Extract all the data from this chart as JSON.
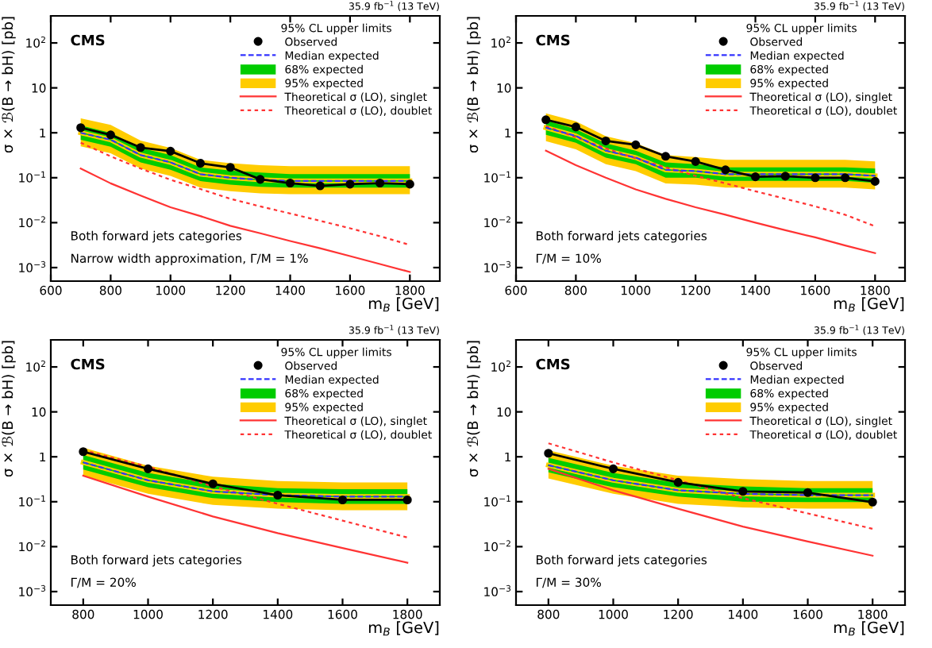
{
  "chart_data": [
    {
      "type": "line",
      "xlabel": "m$_{B}$ [GeV]",
      "ylabel": "σ × ℬ(B → bH) [pb]",
      "legend_title": "95% CL upper limits",
      "legend": "top right",
      "log": "y",
      "annotations": [
        "35.9 fb$^{−1}$ (13 TeV)",
        "CMS",
        "Both forward jets categories",
        "Narrow width approximation, Γ/M = 1%"
      ],
      "xlim": [
        600,
        1900
      ],
      "xticks": [
        600,
        800,
        1000,
        1200,
        1400,
        1600,
        1800
      ],
      "ylim": [
        0.0005,
        400
      ],
      "yticks": [
        {
          "value": 0.001,
          "label": "10$^{−3}$"
        },
        {
          "value": 0.01,
          "label": "10$^{−2}$"
        },
        {
          "value": 0.1,
          "label": "10$^{−1}$"
        },
        1,
        10,
        {
          "value": 100,
          "label": "10$^{2}$"
        }
      ],
      "x": [
        700,
        800,
        900,
        1000,
        1100,
        1200,
        1300,
        1400,
        1500,
        1600,
        1700,
        1800
      ],
      "series": [
        {
          "name": "Observed",
          "color": "#000000",
          "marker": "circle",
          "line_style": "solid",
          "values": [
            1.3,
            0.9,
            0.47,
            0.39,
            0.21,
            0.17,
            0.092,
            0.076,
            0.066,
            0.072,
            0.076,
            0.072
          ]
        },
        {
          "name": "Median expected",
          "color": "#3333ff",
          "line_style": "dashed",
          "values": [
            1.0,
            0.7,
            0.32,
            0.22,
            0.12,
            0.1,
            0.09,
            0.085,
            0.085,
            0.085,
            0.085,
            0.085
          ]
        },
        {
          "name": "68% expected",
          "color": "#00cc00",
          "values": [
            1.0,
            0.7,
            0.32,
            0.22,
            0.12,
            0.1,
            0.09,
            0.085,
            0.085,
            0.085,
            0.085,
            0.085
          ],
          "lower": [
            0.7,
            0.49,
            0.22,
            0.15,
            0.084,
            0.07,
            0.063,
            0.06,
            0.06,
            0.06,
            0.06,
            0.06
          ],
          "upper": [
            1.45,
            1.0,
            0.46,
            0.32,
            0.17,
            0.145,
            0.13,
            0.12,
            0.12,
            0.12,
            0.12,
            0.12
          ]
        },
        {
          "name": "95% expected",
          "color": "#ffcc00",
          "values": [
            1.0,
            0.7,
            0.32,
            0.22,
            0.12,
            0.1,
            0.09,
            0.085,
            0.085,
            0.085,
            0.085,
            0.085
          ],
          "lower": [
            0.5,
            0.35,
            0.16,
            0.11,
            0.06,
            0.05,
            0.045,
            0.043,
            0.043,
            0.043,
            0.043,
            0.043
          ],
          "upper": [
            2.1,
            1.5,
            0.67,
            0.46,
            0.25,
            0.21,
            0.19,
            0.18,
            0.18,
            0.18,
            0.18,
            0.18
          ]
        },
        {
          "name": "Theoretical σ (LO), singlet",
          "color": "#ff3333",
          "line_style": "solid",
          "values": [
            0.16,
            0.075,
            0.04,
            0.022,
            0.014,
            0.0085,
            0.0058,
            0.0039,
            0.0027,
            0.0018,
            0.0012,
            0.0008
          ]
        },
        {
          "name": "Theoretical σ (LO), doublet",
          "color": "#ff3333",
          "line_style": "dotted",
          "values": [
            0.6,
            0.3,
            0.16,
            0.09,
            0.056,
            0.034,
            0.023,
            0.016,
            0.011,
            0.0075,
            0.005,
            0.0032
          ]
        }
      ]
    },
    {
      "type": "line",
      "xlabel": "m$_{B}$ [GeV]",
      "ylabel": "σ × ℬ(B → bH) [pb]",
      "legend_title": "95% CL upper limits",
      "legend": "top right",
      "log": "y",
      "annotations": [
        "35.9 fb$^{−1}$ (13 TeV)",
        "CMS",
        "Both forward jets categories",
        "Γ/M = 10%"
      ],
      "xlim": [
        600,
        1900
      ],
      "xticks": [
        600,
        800,
        1000,
        1200,
        1400,
        1600,
        1800
      ],
      "ylim": [
        0.0005,
        400
      ],
      "yticks": [
        {
          "value": 0.001,
          "label": "10$^{−3}$"
        },
        {
          "value": 0.01,
          "label": "10$^{−2}$"
        },
        {
          "value": 0.1,
          "label": "10$^{−1}$"
        },
        1,
        10,
        {
          "value": 100,
          "label": "10$^{2}$"
        }
      ],
      "x": [
        700,
        800,
        900,
        1000,
        1100,
        1200,
        1300,
        1400,
        1500,
        1600,
        1700,
        1800
      ],
      "series": [
        {
          "name": "Observed",
          "color": "#000000",
          "marker": "circle",
          "line_style": "solid",
          "values": [
            1.95,
            1.35,
            0.66,
            0.54,
            0.3,
            0.23,
            0.15,
            0.105,
            0.108,
            0.1,
            0.1,
            0.083
          ]
        },
        {
          "name": "Median expected",
          "color": "#3333ff",
          "line_style": "dashed",
          "values": [
            1.3,
            0.85,
            0.4,
            0.28,
            0.15,
            0.14,
            0.12,
            0.12,
            0.12,
            0.12,
            0.12,
            0.11
          ]
        },
        {
          "name": "68% expected",
          "color": "#00cc00",
          "values": [
            1.3,
            0.85,
            0.4,
            0.28,
            0.15,
            0.14,
            0.12,
            0.12,
            0.12,
            0.12,
            0.12,
            0.11
          ],
          "lower": [
            0.9,
            0.6,
            0.28,
            0.2,
            0.1,
            0.1,
            0.085,
            0.085,
            0.085,
            0.085,
            0.085,
            0.077
          ],
          "upper": [
            1.9,
            1.2,
            0.58,
            0.4,
            0.22,
            0.2,
            0.17,
            0.17,
            0.17,
            0.17,
            0.17,
            0.16
          ]
        },
        {
          "name": "95% expected",
          "color": "#ffcc00",
          "values": [
            1.3,
            0.85,
            0.4,
            0.28,
            0.15,
            0.14,
            0.12,
            0.12,
            0.12,
            0.12,
            0.12,
            0.11
          ],
          "lower": [
            0.65,
            0.43,
            0.2,
            0.14,
            0.075,
            0.07,
            0.06,
            0.06,
            0.06,
            0.06,
            0.06,
            0.055
          ],
          "upper": [
            2.7,
            1.8,
            0.84,
            0.59,
            0.32,
            0.29,
            0.25,
            0.25,
            0.25,
            0.25,
            0.25,
            0.23
          ]
        },
        {
          "name": "Theoretical σ (LO), singlet",
          "color": "#ff3333",
          "line_style": "solid",
          "values": [
            0.4,
            0.19,
            0.1,
            0.055,
            0.034,
            0.022,
            0.015,
            0.01,
            0.0068,
            0.0047,
            0.0031,
            0.0021
          ]
        },
        {
          "name": "Theoretical σ (LO), doublet",
          "color": "#ff3333",
          "line_style": "dotted",
          "values": [
            1.4,
            0.8,
            0.45,
            0.27,
            0.17,
            0.11,
            0.075,
            0.05,
            0.034,
            0.023,
            0.015,
            0.0083
          ]
        }
      ]
    },
    {
      "type": "line",
      "xlabel": "m$_{B}$ [GeV]",
      "ylabel": "σ × ℬ(B → bH) [pb]",
      "legend_title": "95% CL upper limits",
      "legend": "top right",
      "log": "y",
      "annotations": [
        "35.9 fb$^{−1}$ (13 TeV)",
        "CMS",
        "Both forward jets categories",
        "Γ/M = 20%"
      ],
      "xlim": [
        700,
        1900
      ],
      "xticks": [
        800,
        1000,
        1200,
        1400,
        1600,
        1800
      ],
      "ylim": [
        0.0005,
        400
      ],
      "yticks": [
        {
          "value": 0.001,
          "label": "10$^{−3}$"
        },
        {
          "value": 0.01,
          "label": "10$^{−2}$"
        },
        {
          "value": 0.1,
          "label": "10$^{−1}$"
        },
        1,
        10,
        {
          "value": 100,
          "label": "10$^{2}$"
        }
      ],
      "x": [
        800,
        1000,
        1200,
        1400,
        1600,
        1800
      ],
      "series": [
        {
          "name": "Observed",
          "color": "#000000",
          "marker": "circle",
          "line_style": "solid",
          "values": [
            1.3,
            0.54,
            0.25,
            0.14,
            0.11,
            0.11
          ]
        },
        {
          "name": "Median expected",
          "color": "#3333ff",
          "line_style": "dashed",
          "values": [
            0.75,
            0.3,
            0.17,
            0.14,
            0.13,
            0.13
          ]
        },
        {
          "name": "68% expected",
          "color": "#00cc00",
          "values": [
            0.75,
            0.3,
            0.17,
            0.14,
            0.13,
            0.13
          ],
          "lower": [
            0.52,
            0.21,
            0.12,
            0.098,
            0.09,
            0.09
          ],
          "upper": [
            1.1,
            0.44,
            0.25,
            0.2,
            0.19,
            0.19
          ]
        },
        {
          "name": "95% expected",
          "color": "#ffcc00",
          "values": [
            0.75,
            0.3,
            0.17,
            0.14,
            0.13,
            0.13
          ],
          "lower": [
            0.38,
            0.15,
            0.085,
            0.07,
            0.065,
            0.065
          ],
          "upper": [
            1.6,
            0.63,
            0.36,
            0.29,
            0.27,
            0.27
          ]
        },
        {
          "name": "Theoretical σ (LO), singlet",
          "color": "#ff3333",
          "line_style": "solid",
          "values": [
            0.38,
            0.13,
            0.047,
            0.02,
            0.0093,
            0.0044
          ]
        },
        {
          "name": "Theoretical σ (LO), doublet",
          "color": "#ff3333",
          "line_style": "dotted",
          "values": [
            1.4,
            0.6,
            0.22,
            0.09,
            0.038,
            0.016
          ]
        }
      ]
    },
    {
      "type": "line",
      "xlabel": "m$_{B}$ [GeV]",
      "ylabel": "σ × ℬ(B → bH) [pb]",
      "legend_title": "95% CL upper limits",
      "legend": "top right",
      "log": "y",
      "annotations": [
        "35.9 fb$^{−1}$ (13 TeV)",
        "CMS",
        "Both forward jets categories",
        "Γ/M = 30%"
      ],
      "xlim": [
        700,
        1900
      ],
      "xticks": [
        800,
        1000,
        1200,
        1400,
        1600,
        1800
      ],
      "ylim": [
        0.0005,
        400
      ],
      "yticks": [
        {
          "value": 0.001,
          "label": "10$^{−3}$"
        },
        {
          "value": 0.01,
          "label": "10$^{−2}$"
        },
        {
          "value": 0.1,
          "label": "10$^{−1}$"
        },
        1,
        10,
        {
          "value": 100,
          "label": "10$^{2}$"
        }
      ],
      "x": [
        800,
        1000,
        1200,
        1400,
        1600,
        1800
      ],
      "series": [
        {
          "name": "Observed",
          "color": "#000000",
          "marker": "circle",
          "line_style": "solid",
          "values": [
            1.2,
            0.54,
            0.27,
            0.17,
            0.16,
            0.098
          ]
        },
        {
          "name": "Median expected",
          "color": "#3333ff",
          "line_style": "dashed",
          "values": [
            0.65,
            0.3,
            0.18,
            0.15,
            0.14,
            0.14
          ]
        },
        {
          "name": "68% expected",
          "color": "#00cc00",
          "values": [
            0.65,
            0.3,
            0.18,
            0.15,
            0.14,
            0.14
          ],
          "lower": [
            0.45,
            0.21,
            0.13,
            0.1,
            0.098,
            0.098
          ],
          "upper": [
            0.95,
            0.44,
            0.26,
            0.22,
            0.2,
            0.2
          ]
        },
        {
          "name": "95% expected",
          "color": "#ffcc00",
          "values": [
            0.65,
            0.3,
            0.18,
            0.15,
            0.14,
            0.14
          ],
          "lower": [
            0.33,
            0.15,
            0.09,
            0.075,
            0.07,
            0.07
          ],
          "upper": [
            1.4,
            0.63,
            0.38,
            0.32,
            0.29,
            0.29
          ]
        },
        {
          "name": "Theoretical σ (LO), singlet",
          "color": "#ff3333",
          "line_style": "solid",
          "values": [
            0.54,
            0.18,
            0.07,
            0.028,
            0.013,
            0.0063
          ]
        },
        {
          "name": "Theoretical σ (LO), doublet",
          "color": "#ff3333",
          "line_style": "dotted",
          "values": [
            2.0,
            0.75,
            0.3,
            0.12,
            0.055,
            0.025
          ]
        }
      ]
    }
  ]
}
